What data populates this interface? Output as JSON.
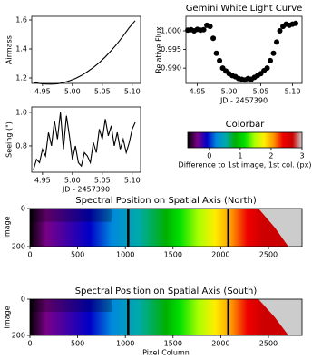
{
  "chart_data": [
    {
      "type": "line",
      "ylabel": "Airmass",
      "color": "#000000",
      "x": [
        4.935,
        4.945,
        4.955,
        4.965,
        4.975,
        4.985,
        4.995,
        5.005,
        5.015,
        5.025,
        5.035,
        5.045,
        5.055,
        5.065,
        5.075,
        5.085,
        5.095,
        5.105
      ],
      "values": [
        1.17,
        1.162,
        1.158,
        1.157,
        1.16,
        1.168,
        1.18,
        1.196,
        1.217,
        1.243,
        1.272,
        1.306,
        1.345,
        1.389,
        1.437,
        1.49,
        1.547,
        1.595
      ],
      "xlim": [
        4.932,
        5.114
      ],
      "xticks": [
        4.95,
        {
          "value": 5.0,
          "label": "5.00"
        },
        5.05,
        {
          "value": 5.1,
          "label": "5.10"
        }
      ],
      "ylim": [
        1.1625,
        1.625
      ],
      "yticks": [
        1.2,
        1.4,
        1.6
      ]
    },
    {
      "type": "scatter",
      "title": "Gemini White Light Curve",
      "ylabel": "Relative Flux",
      "xlabel": "JD - 2457390",
      "color": "#000000",
      "x": [
        4.935,
        4.94,
        4.945,
        4.95,
        4.955,
        4.96,
        4.965,
        4.97,
        4.975,
        4.98,
        4.985,
        4.99,
        4.995,
        5.0,
        5.005,
        5.01,
        5.015,
        5.02,
        5.025,
        5.03,
        5.035,
        5.04,
        5.045,
        5.05,
        5.055,
        5.06,
        5.065,
        5.07,
        5.075,
        5.08,
        5.085,
        5.09,
        5.095,
        5.1,
        5.105
      ],
      "values": [
        1.0002,
        1.0003,
        1.0,
        1.0004,
        1.0002,
        1.0003,
        1.0015,
        1.0012,
        0.998,
        0.994,
        0.992,
        0.99,
        0.9892,
        0.9885,
        0.988,
        0.9877,
        0.9872,
        0.987,
        0.9868,
        0.9872,
        0.987,
        0.9875,
        0.988,
        0.9885,
        0.9893,
        0.99,
        0.992,
        0.994,
        0.997,
        1.0,
        1.0012,
        1.0018,
        1.0015,
        1.0018,
        1.002
      ],
      "xlim": [
        4.932,
        5.115
      ],
      "xticks": [
        4.95,
        {
          "value": 5.0,
          "label": "5.00"
        },
        5.05,
        {
          "value": 5.1,
          "label": "5.10"
        }
      ],
      "ylim": [
        0.9859,
        1.0039
      ],
      "yticks": [
        {
          "value": 0.99,
          "label": "0.990"
        },
        0.995,
        {
          "value": 1.0,
          "label": "1.000"
        }
      ]
    },
    {
      "type": "line",
      "ylabel": "Seeing (\")",
      "xlabel": "JD - 2457390",
      "color": "#000000",
      "x": [
        4.935,
        4.94,
        4.945,
        4.95,
        4.955,
        4.96,
        4.965,
        4.97,
        4.975,
        4.98,
        4.985,
        4.99,
        4.995,
        5.0,
        5.005,
        5.01,
        5.015,
        5.02,
        5.025,
        5.03,
        5.035,
        5.04,
        5.045,
        5.05,
        5.055,
        5.06,
        5.065,
        5.07,
        5.075,
        5.08,
        5.085,
        5.09,
        5.095,
        5.1,
        5.105
      ],
      "values": [
        0.66,
        0.72,
        0.7,
        0.78,
        0.74,
        0.88,
        0.8,
        0.95,
        0.84,
        1.0,
        0.78,
        0.98,
        0.86,
        0.72,
        0.8,
        0.7,
        0.68,
        0.76,
        0.74,
        0.7,
        0.82,
        0.76,
        0.9,
        0.84,
        0.96,
        0.86,
        0.92,
        0.8,
        0.88,
        0.78,
        0.84,
        0.76,
        0.82,
        0.9,
        0.94
      ],
      "xlim": [
        4.932,
        5.114
      ],
      "xticks": [
        4.95,
        {
          "value": 5.0,
          "label": "5.00"
        },
        5.05,
        {
          "value": 5.1,
          "label": "5.10"
        }
      ],
      "ylim": [
        0.643,
        1.032
      ],
      "yticks": [
        0.8,
        {
          "value": 1.0,
          "label": "1.0"
        }
      ]
    },
    {
      "type": "colorbar",
      "title": "Colorbar",
      "xlabel": "Difference to 1st image, 1st col. (px)",
      "colors": [
        "#000000",
        "#7a0088",
        "#0000c8",
        "#0088dd",
        "#00aaaa",
        "#00b000",
        "#00e000",
        "#aaff00",
        "#ffee00",
        "#ff9900",
        "#ee0000",
        "#cc0000",
        "#cccccc"
      ],
      "xlim": [
        -0.7,
        3
      ],
      "xticks": [
        0,
        1,
        2,
        3
      ]
    },
    {
      "type": "heatmap",
      "title": "Spectral Position on Spatial Axis (North)",
      "ylabel": "Image",
      "gap_columns": [
        1030,
        2080
      ],
      "xlim": [
        0,
        2852
      ],
      "xticks": [
        0,
        500,
        1000,
        1500,
        2000,
        2500
      ],
      "ylim": [
        200,
        0
      ],
      "yticks": [
        0,
        200
      ]
    },
    {
      "type": "heatmap",
      "title": "Spectral Position on Spatial Axis (South)",
      "ylabel": "Image",
      "xlabel": "Pixel Column",
      "gap_columns": [
        1030,
        2080
      ],
      "xlim": [
        0,
        2852
      ],
      "xticks": [
        0,
        500,
        1000,
        1500,
        2000,
        2500
      ],
      "ylim": [
        200,
        0
      ],
      "yticks": [
        0,
        200
      ]
    }
  ]
}
